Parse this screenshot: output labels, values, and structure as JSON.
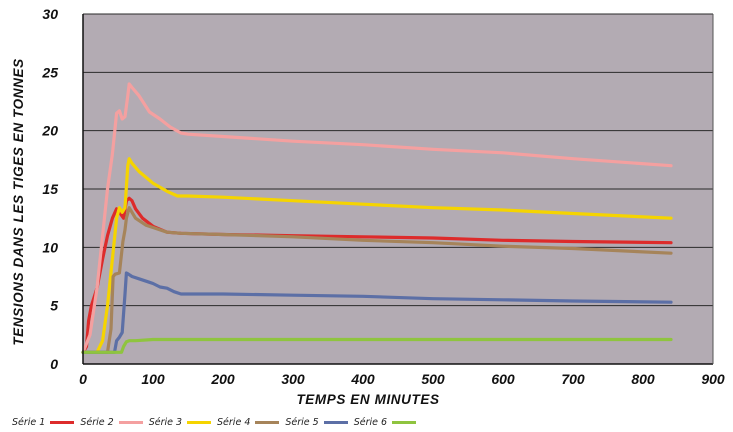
{
  "chart_data": {
    "type": "line",
    "title": "",
    "xlabel": "TEMPS EN MINUTES",
    "ylabel": "TENSIONS DANS LES TIGES EN TONNES",
    "xlim": [
      0,
      900
    ],
    "ylim": [
      0,
      30
    ],
    "xticks": [
      "0",
      "100",
      "200",
      "300",
      "400",
      "500",
      "600",
      "700",
      "800",
      "900"
    ],
    "yticks": [
      "0",
      "5",
      "10",
      "15",
      "20",
      "25",
      "30"
    ],
    "grid": "horizontal",
    "legend_position": "bottom-left",
    "background_color": "#b3abb3",
    "series": [
      {
        "name": "Série 1",
        "color": "#dd2b2b",
        "x": [
          0,
          5,
          8,
          12,
          20,
          28,
          35,
          42,
          48,
          52,
          58,
          62,
          66,
          70,
          75,
          85,
          100,
          120,
          140,
          200,
          300,
          400,
          500,
          600,
          700,
          840
        ],
        "y": [
          1.0,
          1.5,
          3.7,
          5.0,
          6.5,
          9.0,
          11.0,
          12.5,
          13.3,
          13.0,
          12.5,
          14.0,
          14.2,
          14.0,
          13.3,
          12.5,
          11.8,
          11.3,
          11.2,
          11.1,
          11.0,
          10.9,
          10.8,
          10.6,
          10.5,
          10.4
        ]
      },
      {
        "name": "Série 2",
        "color": "#f4a0a0",
        "x": [
          0,
          10,
          20,
          28,
          35,
          42,
          48,
          52,
          56,
          60,
          64,
          66,
          70,
          80,
          95,
          110,
          125,
          140,
          150,
          200,
          300,
          400,
          500,
          600,
          700,
          840
        ],
        "y": [
          1.0,
          2.5,
          6.5,
          11.0,
          15.0,
          18.0,
          21.5,
          21.7,
          21.0,
          21.2,
          23.0,
          24.0,
          23.7,
          23.0,
          21.6,
          21.0,
          20.3,
          19.8,
          19.7,
          19.5,
          19.1,
          18.8,
          18.4,
          18.1,
          17.6,
          17.0
        ]
      },
      {
        "name": "Série 3",
        "color": "#f5d400",
        "x": [
          0,
          20,
          28,
          35,
          42,
          48,
          52,
          56,
          60,
          64,
          66,
          70,
          80,
          100,
          120,
          135,
          150,
          200,
          300,
          400,
          500,
          600,
          700,
          840
        ],
        "y": [
          1.0,
          1.0,
          2.0,
          5.0,
          9.0,
          12.5,
          13.4,
          13.0,
          13.4,
          17.0,
          17.6,
          17.2,
          16.5,
          15.5,
          14.8,
          14.4,
          14.4,
          14.3,
          14.0,
          13.7,
          13.4,
          13.2,
          12.9,
          12.5
        ]
      },
      {
        "name": "Série 4",
        "color": "#a6845a",
        "x": [
          0,
          35,
          40,
          43,
          46,
          52,
          57,
          60,
          62,
          66,
          70,
          75,
          80,
          90,
          100,
          120,
          140,
          200,
          300,
          400,
          500,
          600,
          700,
          840
        ],
        "y": [
          1.0,
          1.0,
          3.0,
          7.5,
          7.7,
          7.8,
          10.5,
          11.5,
          12.5,
          13.4,
          13.0,
          12.5,
          12.3,
          11.9,
          11.7,
          11.3,
          11.2,
          11.1,
          10.9,
          10.6,
          10.4,
          10.1,
          9.9,
          9.5
        ]
      },
      {
        "name": "Série 5",
        "color": "#5c6fa6",
        "x": [
          0,
          45,
          48,
          52,
          56,
          60,
          62,
          65,
          70,
          80,
          95,
          100,
          110,
          120,
          130,
          140,
          200,
          300,
          400,
          500,
          600,
          700,
          840
        ],
        "y": [
          1.0,
          1.0,
          2.0,
          2.3,
          2.7,
          6.0,
          7.8,
          7.7,
          7.5,
          7.3,
          7.0,
          6.9,
          6.6,
          6.5,
          6.2,
          6.0,
          6.0,
          5.9,
          5.8,
          5.6,
          5.5,
          5.4,
          5.3
        ]
      },
      {
        "name": "Série 6",
        "color": "#8fc43f",
        "x": [
          0,
          55,
          58,
          62,
          66,
          75,
          100,
          150,
          300,
          500,
          700,
          840
        ],
        "y": [
          1.0,
          1.0,
          1.5,
          1.9,
          2.0,
          2.0,
          2.1,
          2.1,
          2.1,
          2.1,
          2.1,
          2.1
        ]
      }
    ]
  }
}
